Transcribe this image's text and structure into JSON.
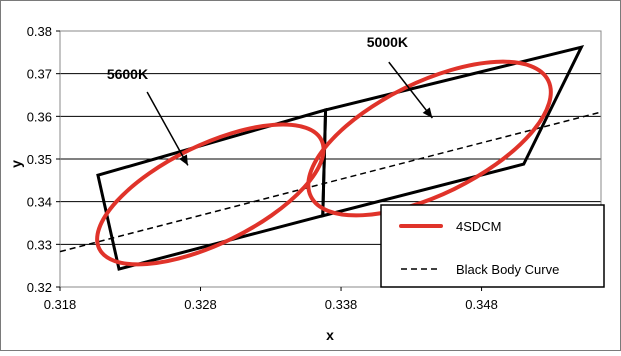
{
  "chart_data": {
    "type": "line",
    "title": "",
    "xlabel": "x",
    "ylabel": "y",
    "xlim": [
      0.318,
      0.3565
    ],
    "ylim": [
      0.32,
      0.38
    ],
    "x_ticks": [
      0.318,
      0.328,
      0.338,
      0.348
    ],
    "x_tick_labels": [
      "0.318",
      "0.328",
      "0.338",
      "0.348"
    ],
    "y_ticks": [
      0.32,
      0.33,
      0.34,
      0.35,
      0.36,
      0.37,
      0.38
    ],
    "y_tick_labels": [
      "0.32",
      "0.33",
      "0.34",
      "0.35",
      "0.36",
      "0.37",
      "0.38"
    ],
    "grid": "horizontal",
    "legend_position": "bottom-right",
    "legend": [
      {
        "label": "4SDCM",
        "color": "#e0332a",
        "style": "solid"
      },
      {
        "label": "Black Body Curve",
        "color": "#000000",
        "style": "dashed"
      }
    ],
    "series": [
      {
        "name": "Black Body Curve",
        "color": "#000000",
        "style": "dashed",
        "x": [
          0.318,
          0.3565
        ],
        "y": [
          0.3283,
          0.361
        ]
      }
    ],
    "quadrangles": [
      {
        "label": "5600K",
        "points": [
          [
            0.3207,
            0.3462
          ],
          [
            0.3369,
            0.3615
          ],
          [
            0.3367,
            0.3367
          ],
          [
            0.3222,
            0.3242
          ]
        ]
      },
      {
        "label": "5000K",
        "points": [
          [
            0.3369,
            0.3615
          ],
          [
            0.3551,
            0.3762
          ],
          [
            0.351,
            0.3488
          ],
          [
            0.3367,
            0.3367
          ]
        ]
      }
    ],
    "ellipses": [
      {
        "label": "5600K",
        "center": [
          0.3287,
          0.3417
        ],
        "semi_axis_a": 0.0088,
        "semi_axis_b": 0.0035,
        "angle_deg": -26
      },
      {
        "label": "5000K",
        "center": [
          0.3443,
          0.3548
        ],
        "semi_axis_a": 0.0094,
        "semi_axis_b": 0.004,
        "angle_deg": -26
      }
    ],
    "annotations": [
      {
        "text": "5600K",
        "x": 0.3228,
        "y": 0.3688,
        "arrow_from": [
          0.3242,
          0.3657
        ],
        "arrow_to": [
          0.3271,
          0.3485
        ]
      },
      {
        "text": "5000K",
        "x": 0.3413,
        "y": 0.3762,
        "arrow_from": [
          0.3414,
          0.3727
        ],
        "arrow_to": [
          0.3445,
          0.3596
        ]
      }
    ]
  }
}
